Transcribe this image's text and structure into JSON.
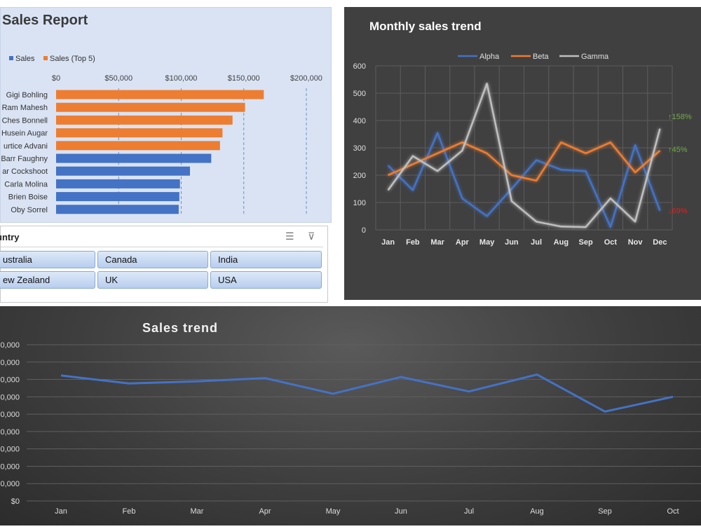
{
  "sales_report": {
    "chart_data": {
      "type": "bar",
      "orientation": "horizontal",
      "title": "Sales Report",
      "legend": [
        "Sales",
        "Sales (Top 5)"
      ],
      "legend_position": "top-left",
      "categories": [
        "Gigi Bohling",
        "Ram Mahesh",
        "Ches Bonnell",
        "Husein Augar",
        "urtice Advani",
        "Barr Faughny",
        "ar Cockshoot",
        "Carla Molina",
        "Brien Boise",
        "Oby Sorrel"
      ],
      "values": [
        166000,
        151000,
        141000,
        133000,
        131000,
        124000,
        107000,
        99000,
        98500,
        98000
      ],
      "top5": [
        true,
        true,
        true,
        true,
        true,
        false,
        false,
        false,
        false,
        false
      ],
      "xlim": [
        0,
        200000
      ],
      "ticks": [
        "$0",
        "$50,000",
        "$100,000",
        "$150,000",
        "$200,000"
      ],
      "colors": {
        "sales": "#4472c4",
        "top5": "#ed7d31"
      }
    }
  },
  "slicer": {
    "title": "untry",
    "items": [
      "ustralia",
      "Canada",
      "India",
      "ew Zealand",
      "UK",
      "USA"
    ]
  },
  "monthly_trend": {
    "chart_data": {
      "type": "line",
      "title": "Monthly sales trend",
      "legend_position": "top",
      "categories": [
        "Jan",
        "Feb",
        "Mar",
        "Apr",
        "May",
        "Jun",
        "Jul",
        "Aug",
        "Sep",
        "Oct",
        "Nov",
        "Dec"
      ],
      "series": [
        {
          "name": "Alpha",
          "color": "#4472c4",
          "values": [
            235,
            145,
            355,
            115,
            50,
            150,
            255,
            220,
            215,
            10,
            310,
            70
          ]
        },
        {
          "name": "Beta",
          "color": "#ed7d31",
          "values": [
            200,
            240,
            280,
            320,
            280,
            200,
            180,
            320,
            280,
            320,
            210,
            290
          ]
        },
        {
          "name": "Gamma",
          "color": "#bfbfbf",
          "values": [
            145,
            270,
            215,
            290,
            535,
            105,
            30,
            12,
            10,
            115,
            30,
            370
          ]
        }
      ],
      "ylim": [
        0,
        600
      ],
      "yticks": [
        "0",
        "100",
        "200",
        "300",
        "400",
        "500",
        "600"
      ],
      "annotations": [
        {
          "text": "↑158%",
          "color": "#70ad47",
          "y": 415
        },
        {
          "text": "↑45%",
          "color": "#70ad47",
          "y": 295
        },
        {
          "text": "↓69%",
          "color": "#e02020",
          "y": 70
        }
      ]
    }
  },
  "sales_trend": {
    "chart_data": {
      "type": "line",
      "title": "Sales trend",
      "categories": [
        "Jan",
        "Feb",
        "Mar",
        "Apr",
        "May",
        "Jun",
        "Jul",
        "Aug",
        "Sep",
        "Oct"
      ],
      "values": [
        723000,
        677000,
        689000,
        708000,
        618000,
        714000,
        631000,
        728000,
        515000,
        600000
      ],
      "ylim": [
        0,
        900000
      ],
      "yticks": [
        "$0",
        "0,000",
        "0,000",
        "0,000",
        "0,000",
        "0,000",
        "0,000",
        "0,000",
        "0,000",
        "0,000"
      ],
      "color": "#4472c4"
    }
  }
}
